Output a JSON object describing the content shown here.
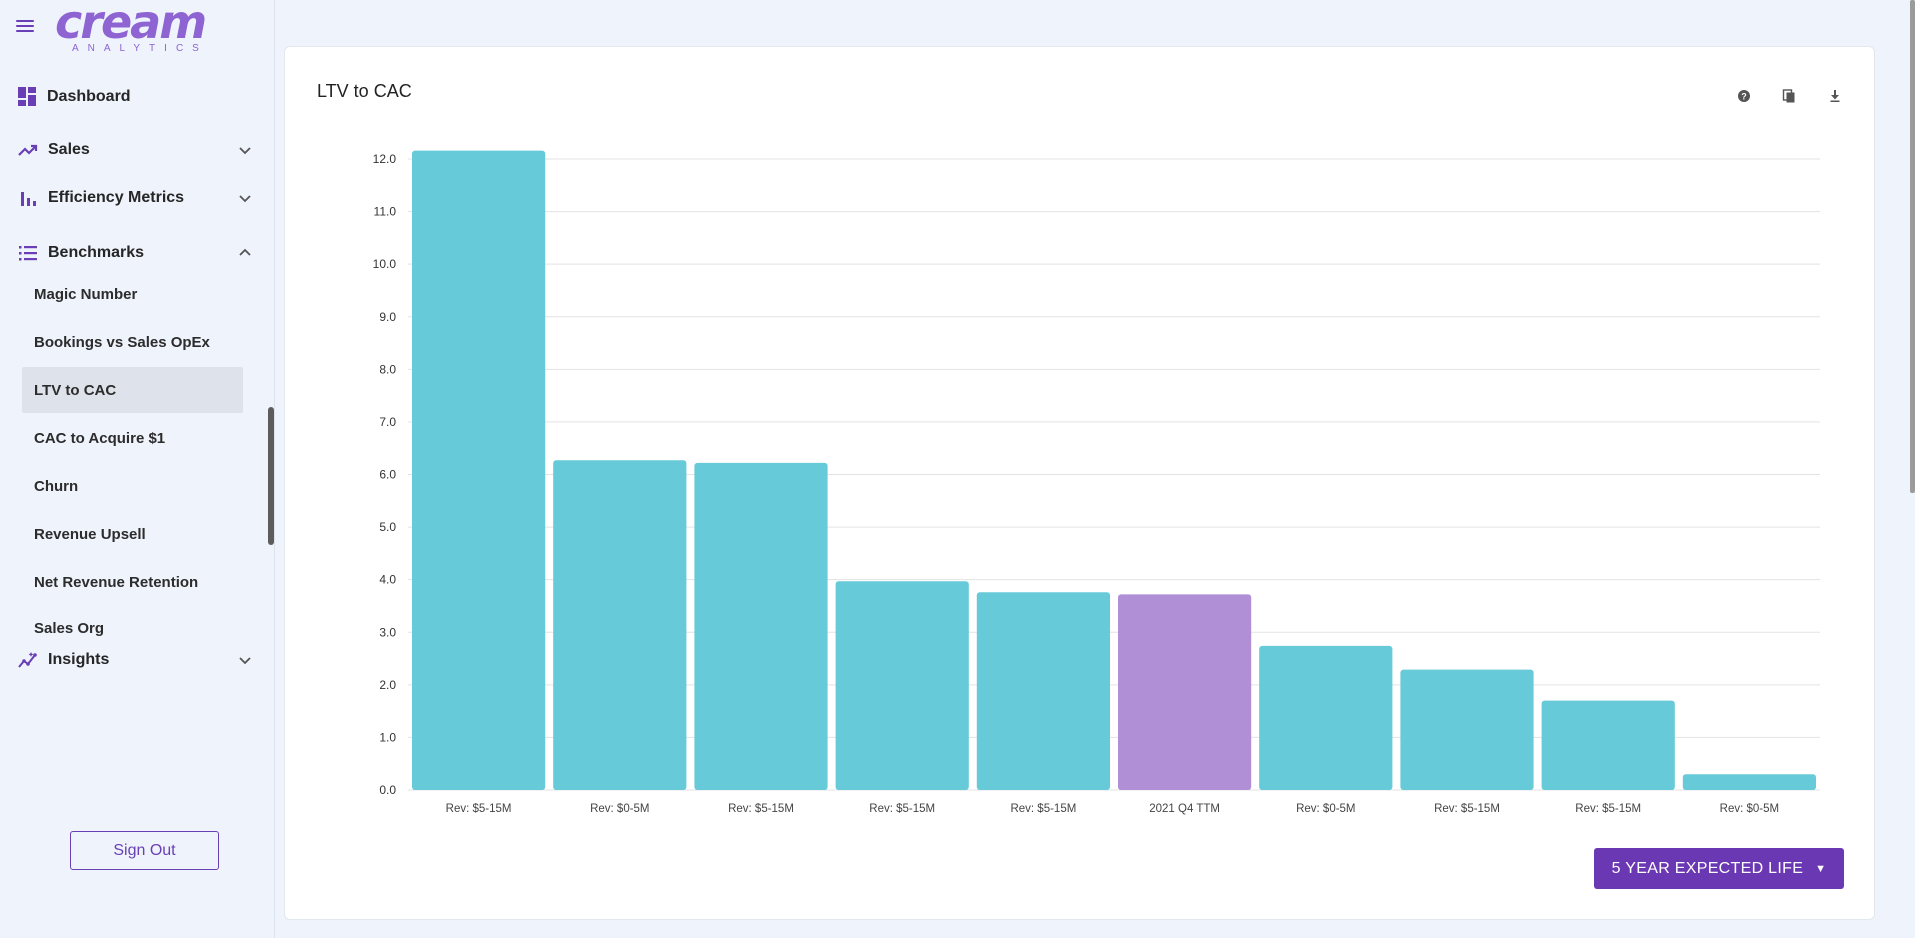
{
  "brand": {
    "name": "cream",
    "sub": "ANALYTICS",
    "color": "#8e63d2"
  },
  "sidebar": {
    "items": [
      {
        "label": "Dashboard",
        "icon": "dashboard-icon"
      },
      {
        "label": "Sales",
        "icon": "trending-up-icon",
        "expanded": false
      },
      {
        "label": "Efficiency Metrics",
        "icon": "bar-chart-icon",
        "expanded": false
      },
      {
        "label": "Benchmarks",
        "icon": "list-icon",
        "expanded": true
      },
      {
        "label": "Insights",
        "icon": "insights-icon",
        "expanded": false
      }
    ],
    "benchmarks": [
      {
        "label": "Magic Number"
      },
      {
        "label": "Bookings vs Sales OpEx"
      },
      {
        "label": "LTV to CAC",
        "active": true
      },
      {
        "label": "CAC to Acquire $1"
      },
      {
        "label": "Churn"
      },
      {
        "label": "Revenue Upsell"
      },
      {
        "label": "Net Revenue Retention"
      },
      {
        "label": "Sales Org"
      }
    ],
    "sign_out": "Sign Out"
  },
  "card": {
    "title": "LTV to CAC",
    "tools": [
      "help-icon",
      "copy-icon",
      "download-icon"
    ],
    "dropdown": {
      "selected": "5 YEAR EXPECTED LIFE"
    }
  },
  "chart_data": {
    "type": "bar",
    "title": "LTV to CAC",
    "categories": [
      "Rev: $5-15M",
      "Rev: $0-5M",
      "Rev: $5-15M",
      "Rev: $5-15M",
      "Rev: $5-15M",
      "2021 Q4 TTM",
      "Rev: $0-5M",
      "Rev: $5-15M",
      "Rev: $5-15M",
      "Rev: $0-5M"
    ],
    "values": [
      12.16,
      6.27,
      6.22,
      3.97,
      3.76,
      3.72,
      2.74,
      2.29,
      1.7,
      0.3
    ],
    "highlight_index": 5,
    "colors": {
      "bar": "#66cad9",
      "highlight": "#b08fd6",
      "grid": "#e3e3e3"
    },
    "ylim": [
      0,
      12
    ],
    "yticks": [
      "0.0",
      "1.0",
      "2.0",
      "3.0",
      "4.0",
      "5.0",
      "6.0",
      "7.0",
      "8.0",
      "9.0",
      "10.0",
      "11.0",
      "12.0"
    ],
    "grid": true,
    "legend": "none"
  }
}
